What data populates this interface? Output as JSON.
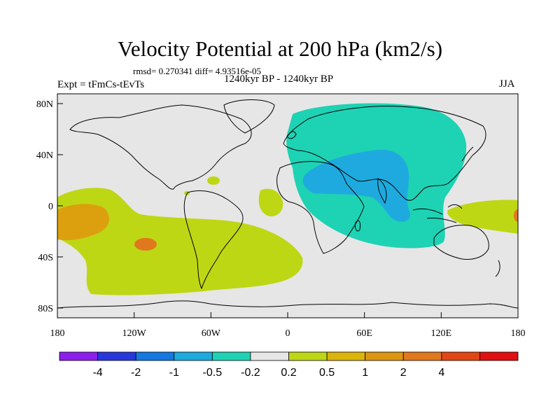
{
  "title": "Velocity Potential at 200 hPa (km2/s)",
  "stats": "rmsd= 0.270341 diff= 4.93516e-05",
  "experiment": "Expt = tFmCs-tEvTs",
  "period": "1240kyr BP - 1240kyr BP",
  "season": "JJA",
  "map": {
    "lat_ticks": [
      "80N",
      "40N",
      "0",
      "40S",
      "80S"
    ],
    "lon_ticks": [
      "180",
      "120W",
      "60W",
      "0",
      "60E",
      "120E",
      "180"
    ],
    "colors": {
      "background": "#e6e6e6",
      "cyan": "#1ed2b4",
      "blue": "#1eaade",
      "yellow_green": "#bed714",
      "orange": "#dca00f",
      "red_orange": "#e1781e",
      "coast": "#000000"
    },
    "regions": [
      {
        "name": "Asia-Africa negative anomaly",
        "level": "-0.5"
      },
      {
        "name": "Middle East / South Asia minimum",
        "level": "-1"
      },
      {
        "name": "Central/South Pacific positive anomaly",
        "level": "0.5"
      },
      {
        "name": "Central Pacific maximum",
        "level": "1"
      },
      {
        "name": "Tropical Atlantic positive anomaly",
        "level": "0.5"
      },
      {
        "name": "Western Pacific positive anomaly",
        "level": "0.5"
      }
    ]
  },
  "colorbar": {
    "colors": [
      "#8c1eeb",
      "#2837dc",
      "#1478e1",
      "#1eaade",
      "#1ed2b4",
      "#e6e6e6",
      "#bed714",
      "#dcb40a",
      "#dc960f",
      "#e1781e",
      "#e14614",
      "#e10f0f"
    ],
    "labels": [
      "-4",
      "-2",
      "-1",
      "-0.5",
      "-0.2",
      "0.2",
      "0.5",
      "1",
      "2",
      "4"
    ]
  }
}
